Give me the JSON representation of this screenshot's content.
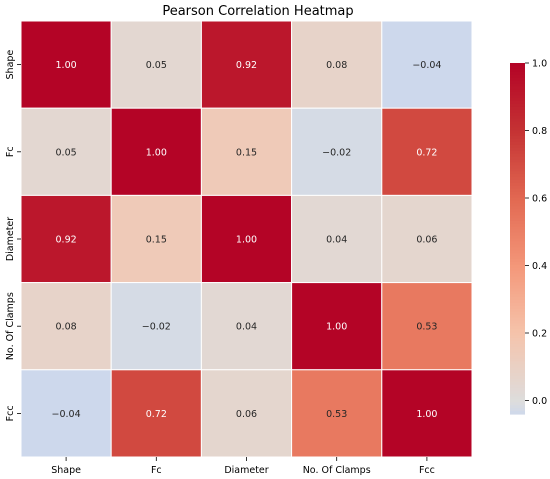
{
  "chart_data": {
    "type": "heatmap",
    "title": "Pearson Correlation Heatmap",
    "row_labels": [
      "Shape",
      "Fc",
      "Diameter",
      "No. Of Clamps",
      "Fcc"
    ],
    "col_labels": [
      "Shape",
      "Fc",
      "Diameter",
      "No. Of Clamps",
      "Fcc"
    ],
    "values": [
      [
        1.0,
        0.05,
        0.92,
        0.08,
        -0.04
      ],
      [
        0.05,
        1.0,
        0.15,
        -0.02,
        0.72
      ],
      [
        0.92,
        0.15,
        1.0,
        0.04,
        0.06
      ],
      [
        0.08,
        -0.02,
        0.04,
        1.0,
        0.53
      ],
      [
        -0.04,
        0.72,
        0.06,
        0.53,
        1.0
      ]
    ],
    "cell_labels": [
      [
        "1.00",
        "0.05",
        "0.92",
        "0.08",
        "−0.04"
      ],
      [
        "0.05",
        "1.00",
        "0.15",
        "−0.02",
        "0.72"
      ],
      [
        "0.92",
        "0.15",
        "1.00",
        "0.04",
        "0.06"
      ],
      [
        "0.08",
        "−0.02",
        "0.04",
        "1.00",
        "0.53"
      ],
      [
        "−0.04",
        "0.72",
        "0.06",
        "0.53",
        "1.00"
      ]
    ],
    "colorbar": {
      "range": [
        -0.04,
        1.0
      ],
      "ticks": [
        0.0,
        0.2,
        0.4,
        0.6,
        0.8,
        1.0
      ],
      "tick_labels": [
        "0.0",
        "0.2",
        "0.4",
        "0.6",
        "0.8",
        "1.0"
      ],
      "colormap": "coolwarm (center 0)"
    },
    "colors": {
      "center": "#dddddd",
      "positive_stops": [
        "#dddddd",
        "#f5c4ac",
        "#f4987a",
        "#e26952",
        "#c53334",
        "#b40426"
      ],
      "negative_stop": "#c9d7f0",
      "cell_border": "#ffffff"
    }
  }
}
